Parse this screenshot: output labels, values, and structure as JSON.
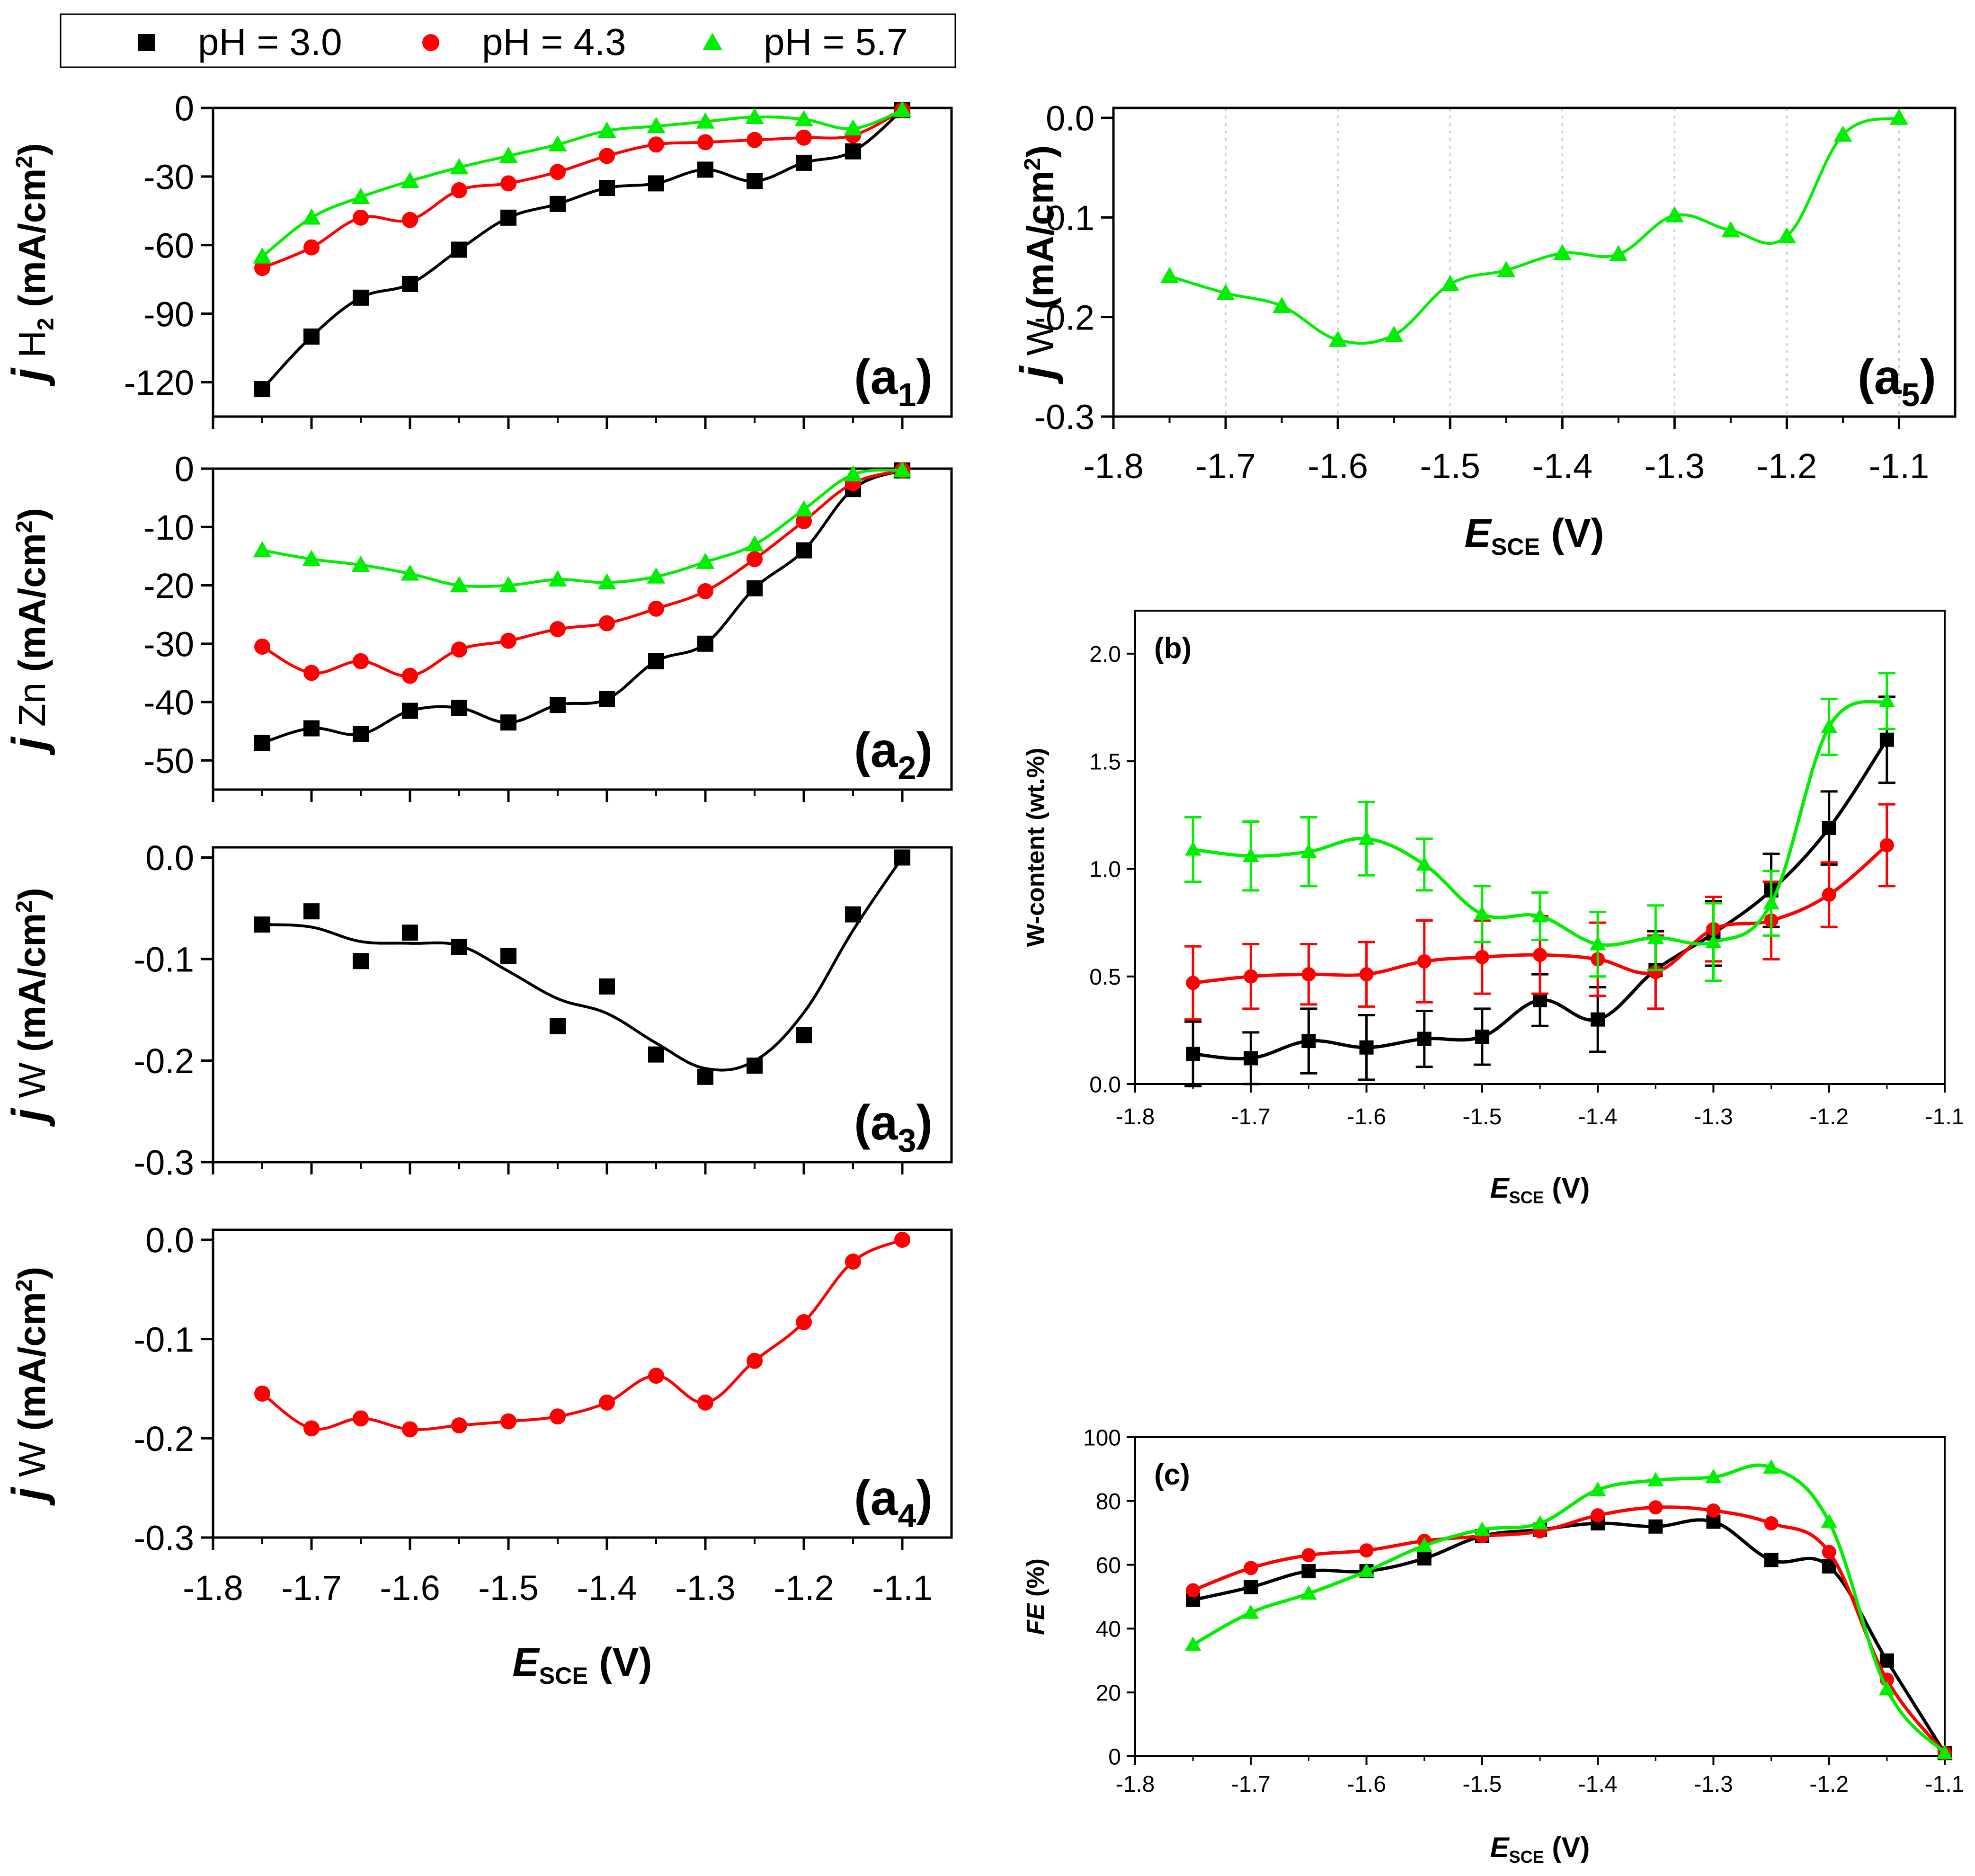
{
  "colors": {
    "pH3": "#000000",
    "pH4": "#ff0000",
    "pH5": "#00ee00"
  },
  "legend": {
    "items": [
      {
        "label": "pH = 3.0",
        "marker": "square",
        "color": "#000000"
      },
      {
        "label": "pH = 4.3",
        "marker": "circle",
        "color": "#ff0000"
      },
      {
        "label": "pH = 5.7",
        "marker": "triangle",
        "color": "#00ee00"
      }
    ]
  },
  "chart_data": [
    {
      "id": "a1",
      "type": "line",
      "panel_label": "(a1)",
      "ylabel": "j H2 (mA/cm2)",
      "xlabel": "",
      "xlim": [
        -1.8,
        -1.05
      ],
      "ylim": [
        -135,
        0
      ],
      "yticks": [
        0,
        -30,
        -60,
        -90,
        -120
      ],
      "ytick_labels": [
        "0",
        "-30",
        "-60",
        "-90",
        "-120"
      ],
      "xticks": [
        -1.8,
        -1.7,
        -1.6,
        -1.5,
        -1.4,
        -1.3,
        -1.2,
        -1.1
      ],
      "xtick_labels": [],
      "x": [
        -1.75,
        -1.7,
        -1.65,
        -1.6,
        -1.55,
        -1.5,
        -1.45,
        -1.4,
        -1.35,
        -1.3,
        -1.25,
        -1.2,
        -1.15,
        -1.1
      ],
      "series": [
        {
          "name": "pH = 3.0",
          "values": [
            -123,
            -100,
            -83,
            -77,
            -62,
            -48,
            -42,
            -35,
            -33,
            -27,
            -32,
            -24,
            -19,
            -1
          ]
        },
        {
          "name": "pH = 4.3",
          "values": [
            -70,
            -61,
            -48,
            -49,
            -36,
            -33,
            -28,
            -21,
            -16,
            -15,
            -14,
            -13,
            -12,
            -1
          ]
        },
        {
          "name": "pH = 5.7",
          "values": [
            -65,
            -48,
            -39,
            -32,
            -26,
            -21,
            -16,
            -10,
            -8,
            -6,
            -4,
            -5,
            -9,
            -1
          ]
        }
      ]
    },
    {
      "id": "a2",
      "type": "line",
      "panel_label": "(a2)",
      "ylabel": "j Zn (mA/cm2)",
      "xlabel": "",
      "xlim": [
        -1.8,
        -1.05
      ],
      "ylim": [
        -55,
        0
      ],
      "yticks": [
        0,
        -10,
        -20,
        -30,
        -40,
        -50
      ],
      "ytick_labels": [
        "0",
        "-10",
        "-20",
        "-30",
        "-40",
        "-50"
      ],
      "xticks": [
        -1.8,
        -1.7,
        -1.6,
        -1.5,
        -1.4,
        -1.3,
        -1.2,
        -1.1
      ],
      "xtick_labels": [],
      "x": [
        -1.75,
        -1.7,
        -1.65,
        -1.6,
        -1.55,
        -1.5,
        -1.45,
        -1.4,
        -1.35,
        -1.3,
        -1.25,
        -1.2,
        -1.15,
        -1.1
      ],
      "series": [
        {
          "name": "pH = 3.0",
          "values": [
            -47,
            -44.5,
            -45.5,
            -41.5,
            -41,
            -43.5,
            -40.5,
            -39.5,
            -33,
            -30,
            -20.5,
            -14,
            -3.5,
            -0.3
          ]
        },
        {
          "name": "pH = 4.3",
          "values": [
            -30.5,
            -35,
            -33,
            -35.5,
            -31,
            -29.5,
            -27.5,
            -26.5,
            -24,
            -21,
            -15.5,
            -9,
            -2.5,
            -0.3
          ]
        },
        {
          "name": "pH = 5.7",
          "values": [
            -14,
            -15.5,
            -16.5,
            -18,
            -20,
            -20,
            -19,
            -19.5,
            -18.5,
            -16,
            -13,
            -7,
            -1,
            -0.3
          ]
        }
      ]
    },
    {
      "id": "a3",
      "type": "line",
      "panel_label": "(a3)",
      "ylabel": "j W (mA/cm2)",
      "xlabel": "",
      "xlim": [
        -1.8,
        -1.05
      ],
      "ylim": [
        -0.3,
        0.01
      ],
      "yticks": [
        0,
        -0.1,
        -0.2,
        -0.3
      ],
      "ytick_labels": [
        "0.0",
        "-0.1",
        "-0.2",
        "-0.3"
      ],
      "xticks": [
        -1.8,
        -1.7,
        -1.6,
        -1.5,
        -1.4,
        -1.3,
        -1.2,
        -1.1
      ],
      "xtick_labels": [],
      "x": [
        -1.75,
        -1.7,
        -1.65,
        -1.6,
        -1.55,
        -1.5,
        -1.45,
        -1.4,
        -1.35,
        -1.3,
        -1.25,
        -1.2,
        -1.15,
        -1.1
      ],
      "series": [
        {
          "name": "pH = 3.0",
          "values": [
            -0.066,
            -0.053,
            -0.102,
            -0.074,
            -0.088,
            -0.097,
            -0.166,
            -0.127,
            -0.194,
            -0.216,
            -0.205,
            -0.175,
            -0.056,
            0.0
          ]
        }
      ]
    },
    {
      "id": "a4",
      "type": "line",
      "panel_label": "(a4)",
      "ylabel": "j W (mA/cm2)",
      "xlabel": "E SCE (V)",
      "xlim": [
        -1.8,
        -1.05
      ],
      "ylim": [
        -0.3,
        0.01
      ],
      "yticks": [
        0,
        -0.1,
        -0.2,
        -0.3
      ],
      "ytick_labels": [
        "0.0",
        "-0.1",
        "-0.2",
        "-0.3"
      ],
      "xticks": [
        -1.8,
        -1.7,
        -1.6,
        -1.5,
        -1.4,
        -1.3,
        -1.2,
        -1.1
      ],
      "xtick_labels": [
        "-1.8",
        "-1.7",
        "-1.6",
        "-1.5",
        "-1.4",
        "-1.3",
        "-1.2",
        "-1.1"
      ],
      "x": [
        -1.75,
        -1.7,
        -1.65,
        -1.6,
        -1.55,
        -1.5,
        -1.45,
        -1.4,
        -1.35,
        -1.3,
        -1.25,
        -1.2,
        -1.15,
        -1.1
      ],
      "series": [
        {
          "name": "pH = 4.3",
          "values": [
            -0.155,
            -0.19,
            -0.18,
            -0.191,
            -0.187,
            -0.183,
            -0.178,
            -0.164,
            -0.137,
            -0.164,
            -0.122,
            -0.083,
            -0.022,
            0.0
          ]
        }
      ]
    },
    {
      "id": "a5",
      "type": "line",
      "panel_label": "(a5)",
      "ylabel": "j W (mA/cm2)",
      "xlabel": "E SCE (V)",
      "xlim": [
        -1.8,
        -1.05
      ],
      "ylim": [
        -0.3,
        0.01
      ],
      "yticks": [
        0,
        -0.1,
        -0.2,
        -0.3
      ],
      "ytick_labels": [
        "0.0",
        "-0.1",
        "-0.2",
        "-0.3"
      ],
      "xticks": [
        -1.8,
        -1.7,
        -1.6,
        -1.5,
        -1.4,
        -1.3,
        -1.2,
        -1.1
      ],
      "xtick_labels": [
        "-1.8",
        "-1.7",
        "-1.6",
        "-1.5",
        "-1.4",
        "-1.3",
        "-1.2",
        "-1.1"
      ],
      "x": [
        -1.75,
        -1.7,
        -1.65,
        -1.6,
        -1.55,
        -1.5,
        -1.45,
        -1.4,
        -1.35,
        -1.3,
        -1.25,
        -1.2,
        -1.15,
        -1.1
      ],
      "series": [
        {
          "name": "pH = 5.7",
          "values": [
            -0.159,
            -0.176,
            -0.189,
            -0.223,
            -0.218,
            -0.167,
            -0.153,
            -0.136,
            -0.137,
            -0.098,
            -0.113,
            -0.119,
            -0.017,
            0.0
          ]
        }
      ]
    },
    {
      "id": "b",
      "type": "line",
      "panel_label": "(b)",
      "ylabel": "W-content (wt.%)",
      "xlabel": "E SCE (V)",
      "xlim": [
        -1.8,
        -1.1
      ],
      "ylim": [
        0,
        2.2
      ],
      "yticks": [
        0,
        0.5,
        1,
        1.5,
        2
      ],
      "ytick_labels": [
        "0.0",
        "0.5",
        "1.0",
        "1.5",
        "2.0"
      ],
      "xticks": [
        -1.8,
        -1.7,
        -1.6,
        -1.5,
        -1.4,
        -1.3,
        -1.2,
        -1.1
      ],
      "xtick_labels": [
        "-1.8",
        "-1.7",
        "-1.6",
        "-1.5",
        "-1.4",
        "-1.3",
        "-1.2",
        "-1.1"
      ],
      "x": [
        -1.75,
        -1.7,
        -1.65,
        -1.6,
        -1.55,
        -1.5,
        -1.45,
        -1.4,
        -1.35,
        -1.3,
        -1.25,
        -1.2,
        -1.15
      ],
      "series": [
        {
          "name": "pH = 3.0",
          "values": [
            0.14,
            0.12,
            0.2,
            0.17,
            0.21,
            0.22,
            0.39,
            0.3,
            0.53,
            0.7,
            0.9,
            1.19,
            1.6
          ],
          "errors": [
            0.15,
            0.12,
            0.15,
            0.15,
            0.13,
            0.13,
            0.12,
            0.15,
            0.18,
            0.15,
            0.17,
            0.17,
            0.2
          ]
        },
        {
          "name": "pH = 4.3",
          "values": [
            0.47,
            0.5,
            0.51,
            0.51,
            0.57,
            0.59,
            0.6,
            0.58,
            0.52,
            0.72,
            0.76,
            0.88,
            1.11
          ],
          "errors": [
            0.17,
            0.15,
            0.14,
            0.15,
            0.19,
            0.17,
            0.18,
            0.17,
            0.17,
            0.15,
            0.18,
            0.15,
            0.19
          ]
        },
        {
          "name": "pH = 5.7",
          "values": [
            1.09,
            1.06,
            1.08,
            1.14,
            1.02,
            0.79,
            0.78,
            0.65,
            0.68,
            0.66,
            0.84,
            1.66,
            1.78
          ],
          "errors": [
            0.15,
            0.16,
            0.16,
            0.17,
            0.12,
            0.13,
            0.11,
            0.15,
            0.15,
            0.18,
            0.15,
            0.13,
            0.13
          ]
        }
      ]
    },
    {
      "id": "c",
      "type": "line",
      "panel_label": "(c)",
      "ylabel": "FE (%)",
      "xlabel": "E SCE (V)",
      "xlim": [
        -1.8,
        -1.1
      ],
      "ylim": [
        0,
        100
      ],
      "yticks": [
        0,
        20,
        40,
        60,
        80,
        100
      ],
      "ytick_labels": [
        "0",
        "20",
        "40",
        "60",
        "80",
        "100"
      ],
      "xticks": [
        -1.8,
        -1.7,
        -1.6,
        -1.5,
        -1.4,
        -1.3,
        -1.2,
        -1.1
      ],
      "xtick_labels": [
        "-1.8",
        "-1.7",
        "-1.6",
        "-1.5",
        "-1.4",
        "-1.3",
        "-1.2",
        "-1.1"
      ],
      "x": [
        -1.75,
        -1.7,
        -1.65,
        -1.6,
        -1.55,
        -1.5,
        -1.45,
        -1.4,
        -1.35,
        -1.3,
        -1.25,
        -1.2,
        -1.15,
        -1.1
      ],
      "series": [
        {
          "name": "pH = 3.0",
          "values": [
            49,
            53,
            58,
            58,
            62,
            69,
            71,
            73,
            72,
            73.5,
            61.5,
            59.5,
            30,
            1
          ]
        },
        {
          "name": "pH = 4.3",
          "values": [
            52,
            59,
            63,
            64.5,
            67.5,
            69,
            70.5,
            75.5,
            78,
            77,
            73,
            64,
            24,
            1
          ]
        },
        {
          "name": "pH = 5.7",
          "values": [
            35,
            45,
            51,
            58,
            66,
            71,
            73,
            83.5,
            86.5,
            87.5,
            90.5,
            73.5,
            21,
            1
          ]
        }
      ]
    }
  ]
}
